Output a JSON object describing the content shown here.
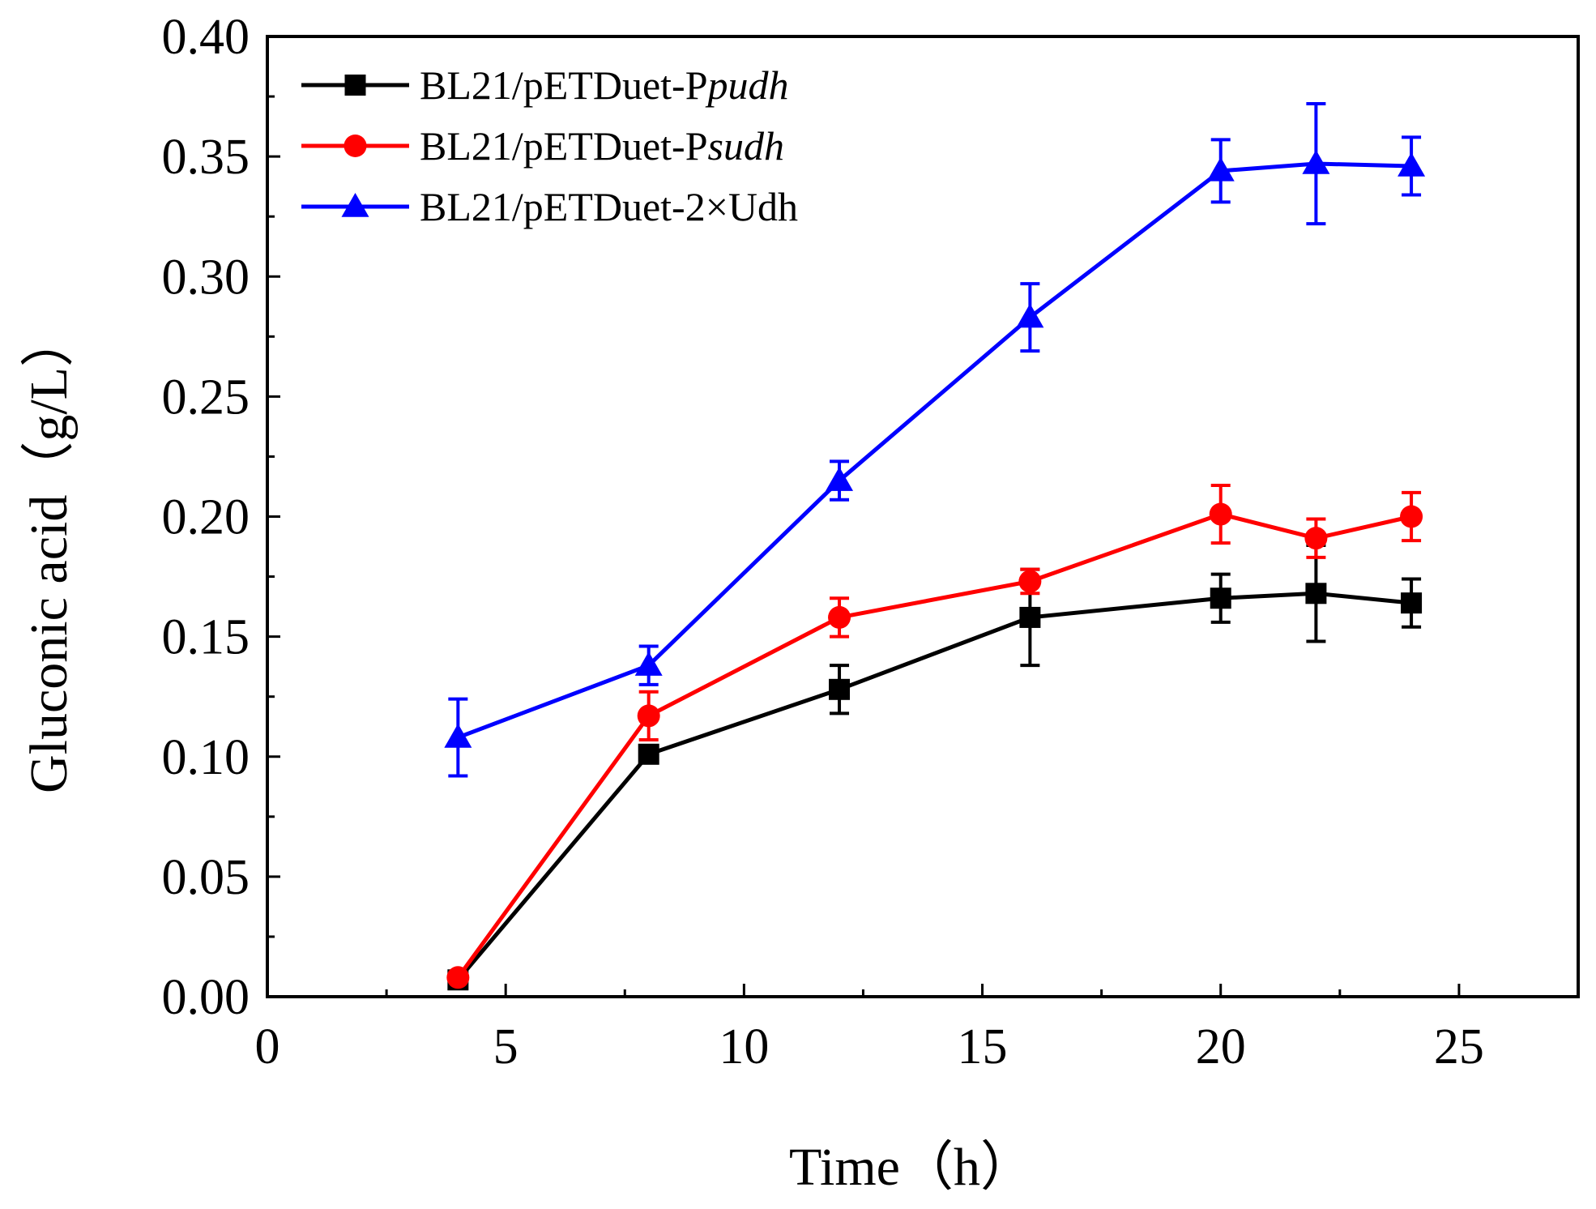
{
  "chart_data": {
    "type": "line",
    "title": "",
    "xlabel": "Time（h）",
    "ylabel": "Gluconic acid（g/L）",
    "xlim": [
      0,
      27.5
    ],
    "ylim": [
      0,
      0.4
    ],
    "xticks": [
      0,
      5,
      10,
      15,
      20,
      25
    ],
    "xtick_labels": [
      "0",
      "5",
      "10",
      "15",
      "20",
      "25"
    ],
    "yticks": [
      0,
      0.05,
      0.1,
      0.15,
      0.2,
      0.25,
      0.3,
      0.35,
      0.4
    ],
    "ytick_labels": [
      "0.00",
      "0.05",
      "0.10",
      "0.15",
      "0.20",
      "0.25",
      "0.30",
      "0.35",
      "0.40"
    ],
    "legend_position": "top-left",
    "grid": false,
    "series": [
      {
        "name": "BL21/pETDuet-Ppudh",
        "legend_prefix": "BL21/pETDuet-P",
        "legend_italic": "pudh",
        "color": "#000000",
        "marker": "square",
        "x": [
          4,
          8,
          12,
          16,
          20,
          22,
          24
        ],
        "y": [
          0.007,
          0.101,
          0.128,
          0.158,
          0.166,
          0.168,
          0.164
        ],
        "err": [
          0.0,
          0.0,
          0.01,
          0.02,
          0.01,
          0.02,
          0.01
        ]
      },
      {
        "name": "BL21/pETDuet-Psudh",
        "legend_prefix": "BL21/pETDuet-P",
        "legend_italic": "sudh",
        "color": "#ff0000",
        "marker": "circle",
        "x": [
          4,
          8,
          12,
          16,
          20,
          22,
          24
        ],
        "y": [
          0.008,
          0.117,
          0.158,
          0.173,
          0.201,
          0.191,
          0.2
        ],
        "err": [
          0.0,
          0.01,
          0.008,
          0.005,
          0.012,
          0.008,
          0.01
        ]
      },
      {
        "name": "BL21/pETDuet-2×Udh",
        "legend_prefix": "BL21/pETDuet-2×Udh",
        "legend_italic": "",
        "color": "#0000ff",
        "marker": "triangle",
        "x": [
          4,
          8,
          12,
          16,
          20,
          22,
          24
        ],
        "y": [
          0.108,
          0.138,
          0.215,
          0.283,
          0.344,
          0.347,
          0.346
        ],
        "err": [
          0.016,
          0.008,
          0.008,
          0.014,
          0.013,
          0.025,
          0.012
        ]
      }
    ]
  }
}
